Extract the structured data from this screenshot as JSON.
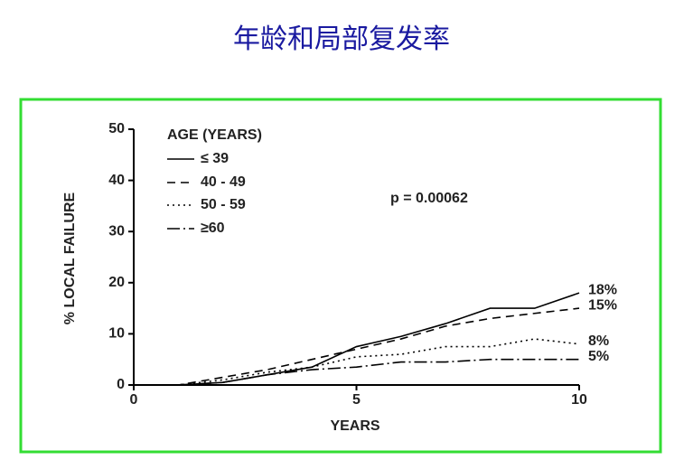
{
  "chart_data": {
    "type": "line",
    "title": "年龄和局部复发率",
    "xlabel": "YEARS",
    "ylabel": "% LOCAL FAILURE",
    "legend_title": "AGE (YEARS)",
    "annotation": "p = 0.00062",
    "x": [
      0,
      1,
      2,
      3,
      4,
      5,
      6,
      7,
      8,
      9,
      10
    ],
    "xlim": [
      0,
      10
    ],
    "xticks": [
      0,
      5,
      10
    ],
    "ylim": [
      0,
      50
    ],
    "yticks": [
      0,
      10,
      20,
      30,
      40,
      50
    ],
    "series": [
      {
        "name": "≤ 39",
        "color": "#000000",
        "dash": "none",
        "values": [
          0,
          0,
          0.5,
          2,
          3.5,
          7.5,
          9.5,
          12,
          15,
          15,
          18
        ],
        "value_labels": [
          null,
          null,
          null,
          null,
          null,
          null,
          null,
          null,
          null,
          null,
          "18%"
        ]
      },
      {
        "name": "40 - 49",
        "color": "#000000",
        "dash": "9,6",
        "values": [
          0,
          0,
          1.5,
          3,
          5,
          7,
          9,
          11.5,
          13,
          14,
          15
        ],
        "value_labels": [
          null,
          null,
          null,
          null,
          null,
          null,
          null,
          null,
          null,
          null,
          "15%"
        ]
      },
      {
        "name": "50 - 59",
        "color": "#000000",
        "dash": "2,4",
        "values": [
          0,
          0,
          1,
          2.5,
          3.5,
          5.5,
          6,
          7.5,
          7.5,
          9,
          8
        ],
        "value_labels": [
          null,
          null,
          null,
          null,
          null,
          null,
          null,
          null,
          null,
          null,
          "8%"
        ]
      },
      {
        "name": "≥60",
        "color": "#000000",
        "dash": "14,4,2,4",
        "values": [
          0,
          0,
          0.5,
          2,
          3,
          3.5,
          4.5,
          4.5,
          5,
          5,
          5
        ],
        "value_labels": [
          null,
          null,
          null,
          null,
          null,
          null,
          null,
          null,
          null,
          null,
          "5%"
        ]
      }
    ]
  }
}
